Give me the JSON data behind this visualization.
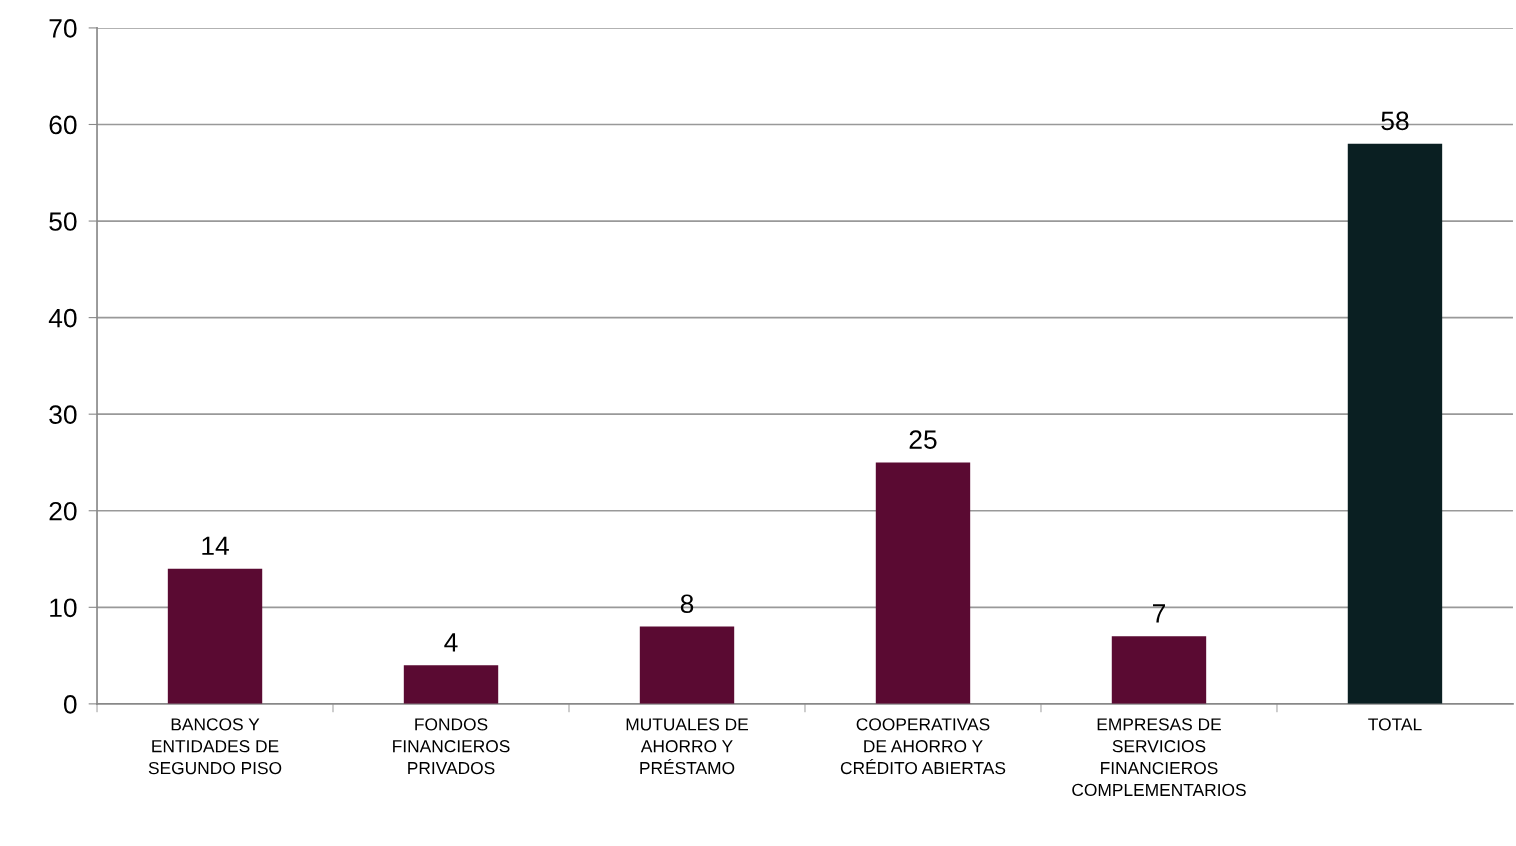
{
  "chart_data": {
    "type": "bar",
    "categories": [
      "BANCOS Y\nENTIDADES DE\nSEGUNDO PISO",
      "FONDOS\nFINANCIEROS\nPRIVADOS",
      "MUTUALES DE\nAHORRO Y\nPRÉSTAMO",
      "COOPERATIVAS\nDE AHORRO Y\nCRÉDITO ABIERTAS",
      "EMPRESAS DE\nSERVICIOS\nFINANCIEROS\nCOMPLEMENTARIOS",
      "TOTAL"
    ],
    "values": [
      14,
      4,
      8,
      25,
      7,
      58
    ],
    "colors": [
      "#5a0a32",
      "#5a0a32",
      "#5a0a32",
      "#5a0a32",
      "#5a0a32",
      "#0a1f22"
    ],
    "ylim": [
      0,
      70
    ],
    "yticks": [
      0,
      10,
      20,
      30,
      40,
      50,
      60,
      70
    ],
    "grid": "y",
    "data_labels": true,
    "legend": false
  }
}
